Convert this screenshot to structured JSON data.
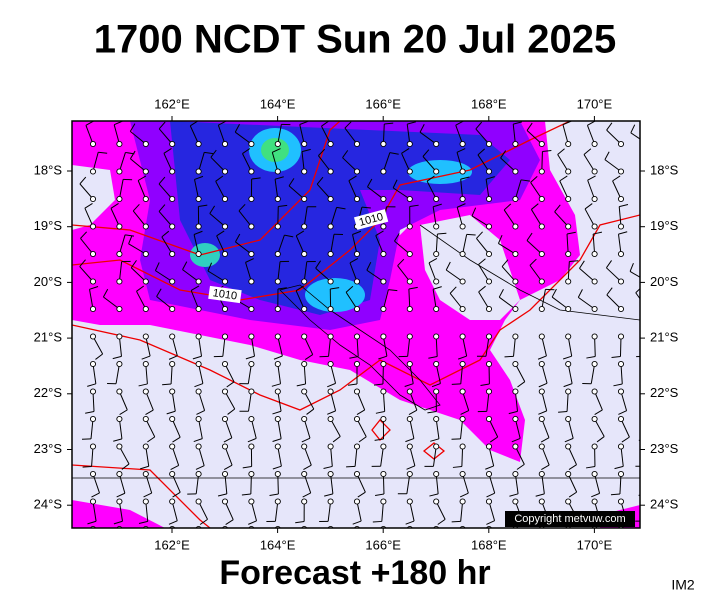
{
  "header": {
    "title": "1700 NCDT Sun 20 Jul 2025"
  },
  "map": {
    "lon_labels": [
      "162°E",
      "164°E",
      "166°E",
      "168°E",
      "170°E"
    ],
    "lat_labels": [
      "18°S",
      "19°S",
      "20°S",
      "21°S",
      "22°S",
      "23°S",
      "24°S"
    ],
    "contour_labels": [
      "1010",
      "1010"
    ]
  },
  "footer": {
    "forecast": "Forecast +180 hr",
    "copyright": "Copyright metvuw.com",
    "image_id": "IM2"
  }
}
